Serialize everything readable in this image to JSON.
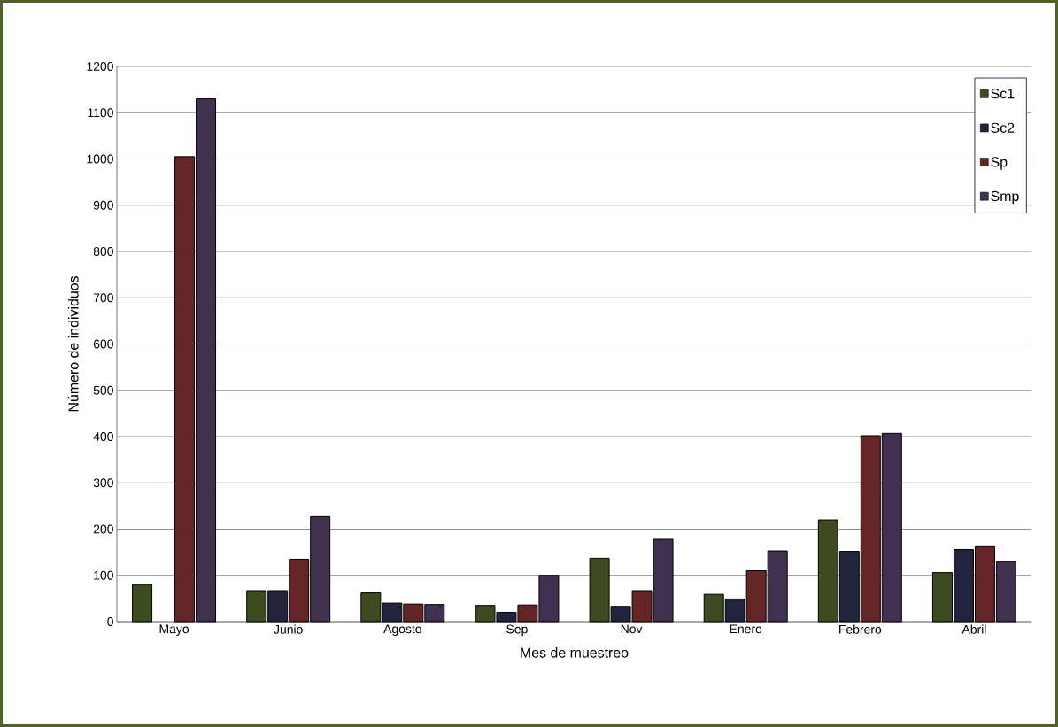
{
  "chart_data": {
    "type": "bar",
    "xlabel": "Mes de muestreo",
    "ylabel": "Número de individuos",
    "categories": [
      "Mayo",
      "Junio",
      "Agosto",
      "Sep",
      "Nov",
      "Enero",
      "Febrero",
      "Abril"
    ],
    "series": [
      {
        "name": "Sc1",
        "color": "#3d4b21",
        "values": [
          80,
          67,
          62,
          35,
          137,
          59,
          220,
          106
        ]
      },
      {
        "name": "Sc2",
        "color": "#20253d",
        "values": [
          null,
          67,
          40,
          20,
          33,
          49,
          152,
          156
        ]
      },
      {
        "name": "Sp",
        "color": "#652527",
        "values": [
          1005,
          135,
          38,
          36,
          67,
          110,
          402,
          162
        ]
      },
      {
        "name": "Smp",
        "color": "#403151",
        "values": [
          1130,
          227,
          37,
          100,
          178,
          153,
          407,
          130
        ]
      }
    ],
    "ylim": [
      0,
      1200
    ],
    "yticks": [
      0,
      100,
      200,
      300,
      400,
      500,
      600,
      700,
      800,
      900,
      1000,
      1100,
      1200
    ],
    "grid": "y",
    "legend": "top right"
  }
}
